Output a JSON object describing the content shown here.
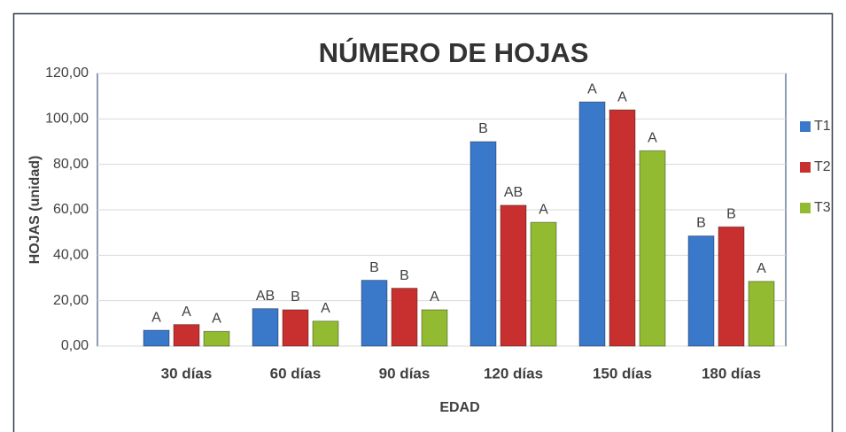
{
  "chart_data": {
    "type": "bar",
    "title": "NÚMERO DE HOJAS",
    "x_label": "EDAD",
    "y_label": "HOJAS (unidad)",
    "categories": [
      "30 días",
      "60 días",
      "90 días",
      "120 días",
      "150 días",
      "180 días"
    ],
    "series": [
      {
        "name": "T1",
        "color": "#3a78c9",
        "values": [
          7,
          16.5,
          29,
          90,
          107.5,
          48.5
        ],
        "labels": [
          "A",
          "AB",
          "B",
          "B",
          "A",
          "B"
        ]
      },
      {
        "name": "T2",
        "color": "#c8302f",
        "values": [
          9.5,
          16,
          25.5,
          62,
          104,
          52.5
        ],
        "labels": [
          "A",
          "B",
          "B",
          "AB",
          "A",
          "B"
        ]
      },
      {
        "name": "T3",
        "color": "#92bb32",
        "values": [
          6.5,
          11,
          16,
          54.5,
          86,
          28.5
        ],
        "labels": [
          "A",
          "A",
          "A",
          "A",
          "A",
          "A"
        ]
      }
    ],
    "ylim": [
      0,
      120
    ],
    "yticks": [
      {
        "value": 0,
        "label": "0,00"
      },
      {
        "value": 20,
        "label": "20,00"
      },
      {
        "value": 40,
        "label": "40,00"
      },
      {
        "value": 60,
        "label": "60,00"
      },
      {
        "value": 80,
        "label": "80,00"
      },
      {
        "value": 100,
        "label": "100,00"
      },
      {
        "value": 120,
        "label": "120,00"
      }
    ],
    "grid": true,
    "legend": "right"
  }
}
